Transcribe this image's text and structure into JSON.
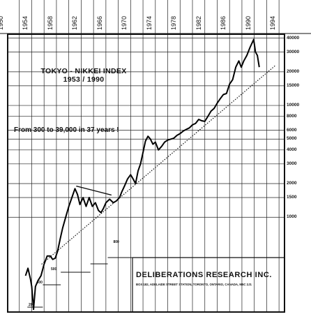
{
  "chart_data": {
    "type": "line",
    "title": "TOKYO - NIKKEI INDEX",
    "subtitle": "1953 / 1990",
    "annotation": "From 300 to 39,000 in 37 years !",
    "y_scale": "log",
    "x_tick_labels": [
      "1950",
      "1954",
      "1958",
      "1962",
      "1966",
      "1970",
      "1974",
      "1978",
      "1982",
      "1986",
      "1990",
      "1994"
    ],
    "y_tick_labels": [
      "40000",
      "30000",
      "20000",
      "15000",
      "10000",
      "8000",
      "6000",
      "5000",
      "4000",
      "3000",
      "2000",
      "1500",
      "1000"
    ],
    "level_markers": [
      "200",
      "400",
      "500",
      "800"
    ],
    "xlim": [
      1950,
      1995
    ],
    "ylim": [
      140,
      44000
    ],
    "series": [
      {
        "x": [
          1953.0,
          1953.4,
          1953.8,
          1954.0,
          1954.3,
          1954.6,
          1955.0,
          1955.5,
          1956.0,
          1956.5,
          1957.0,
          1957.4,
          1957.8,
          1958.2,
          1958.6,
          1959.0,
          1959.5,
          1960.0,
          1960.5,
          1961.0,
          1961.4,
          1961.8,
          1962.3,
          1962.8,
          1963.3,
          1963.8,
          1964.3,
          1964.8,
          1965.2,
          1965.6,
          1966.0,
          1966.6,
          1967.2,
          1967.7,
          1968.2,
          1968.6,
          1969.0,
          1969.5,
          1970.0,
          1970.4,
          1970.8,
          1971.2,
          1971.6,
          1972.0,
          1972.4,
          1972.8,
          1973.2,
          1973.6,
          1974.0,
          1974.5,
          1975.0,
          1975.5,
          1976.0,
          1976.5,
          1977.0,
          1977.5,
          1978.0,
          1978.5,
          1979.0,
          1979.5,
          1980.0,
          1980.5,
          1981.0,
          1981.5,
          1982.0,
          1982.5,
          1983.0,
          1983.5,
          1984.0,
          1984.5,
          1985.0,
          1985.5,
          1986.0,
          1986.5,
          1987.0,
          1987.5,
          1987.9,
          1988.3,
          1988.8,
          1989.3,
          1989.9,
          1990.2,
          1990.5,
          1990.8
        ],
        "y": [
          300,
          350,
          280,
          240,
          150,
          240,
          270,
          300,
          380,
          450,
          450,
          420,
          430,
          500,
          640,
          800,
          1000,
          1250,
          1500,
          1800,
          1600,
          1300,
          1500,
          1250,
          1500,
          1250,
          1350,
          1150,
          1100,
          1200,
          1350,
          1450,
          1350,
          1400,
          1500,
          1700,
          1900,
          2200,
          2400,
          2200,
          2000,
          2600,
          3000,
          3800,
          4800,
          5300,
          5000,
          4500,
          4700,
          4000,
          4300,
          4700,
          4900,
          5000,
          5100,
          5400,
          5600,
          5900,
          6100,
          6300,
          6700,
          6900,
          7500,
          7300,
          7200,
          8000,
          8900,
          9400,
          10500,
          11500,
          12500,
          12800,
          15500,
          17000,
          22000,
          25000,
          22000,
          25000,
          28000,
          33000,
          38900,
          30000,
          28000,
          22000
        ]
      }
    ],
    "trendlines": [
      {
        "x": [
          1955.6,
          1993.5
        ],
        "y": [
          380,
          23000
        ],
        "style": "dotted"
      },
      {
        "x": [
          1961.2,
          1966.9
        ],
        "y": [
          1900,
          1580
        ],
        "style": "solid"
      }
    ],
    "grid": true
  },
  "publisher": {
    "name": "DELIBERATIONS RESEARCH INC.",
    "address": "BOX 182, ADELAIDE STREET STATION, TORONTO, ONTARIO, CANADA, M5C 2J1"
  }
}
